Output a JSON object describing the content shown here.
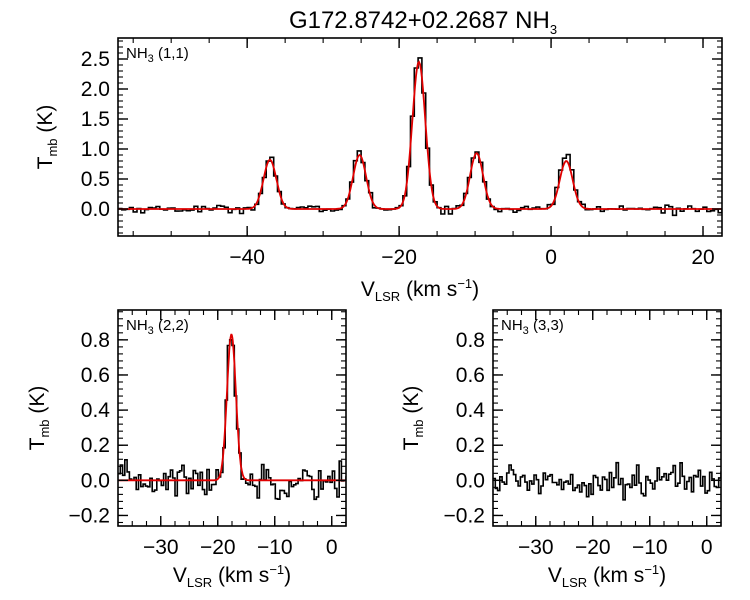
{
  "figure": {
    "title_main": "G172.8742+02.2687 NH",
    "title_sub": "3"
  },
  "axis_text": {
    "ylabel_main": "T",
    "ylabel_sub": "mb",
    "ylabel_unit": " (K)",
    "xlabel_main": "V",
    "xlabel_sub": "LSR",
    "xlabel_unit": " (km s",
    "xlabel_sup": "−1",
    "xlabel_close": ")"
  },
  "colors": {
    "observed": "#000000",
    "fit": "#e00000"
  },
  "chart_data": [
    {
      "type": "line",
      "panel": "NH3 (1,1)",
      "label_main": "NH",
      "label_sub": "3",
      "label_rest": " (1,1)",
      "xlim": [
        -57,
        22.5
      ],
      "ylim": [
        -0.45,
        2.85
      ],
      "xticks": [
        -40,
        -20,
        0,
        20
      ],
      "xtick_labels": [
        "−40",
        "−20",
        "0",
        "20"
      ],
      "yticks": [
        0.0,
        0.5,
        1.0,
        1.5,
        2.0,
        2.5
      ],
      "ytick_labels": [
        "0.0",
        "0.5",
        "1.0",
        "1.5",
        "2.0",
        "2.5"
      ],
      "series": [
        {
          "style": "observed-histogram",
          "components": [
            {
              "center": -37.0,
              "amplitude": 0.85,
              "width": 0.85
            },
            {
              "center": -25.2,
              "amplitude": 0.93,
              "width": 0.85
            },
            {
              "center": -17.4,
              "amplitude": 2.58,
              "width": 0.85
            },
            {
              "center": -9.8,
              "amplitude": 0.97,
              "width": 0.85
            },
            {
              "center": 2.0,
              "amplitude": 0.95,
              "width": 0.85
            }
          ],
          "noise_rms": 0.03,
          "channel_width": 0.5
        },
        {
          "style": "gaussian-fit",
          "components": [
            {
              "center": -37.0,
              "amplitude": 0.82,
              "width": 0.85
            },
            {
              "center": -25.2,
              "amplitude": 0.9,
              "width": 0.85
            },
            {
              "center": -17.4,
              "amplitude": 2.45,
              "width": 0.85
            },
            {
              "center": -9.8,
              "amplitude": 0.93,
              "width": 0.85
            },
            {
              "center": 2.0,
              "amplitude": 0.8,
              "width": 0.85
            }
          ]
        }
      ]
    },
    {
      "type": "line",
      "panel": "NH3 (2,2)",
      "label_main": "NH",
      "label_sub": "3",
      "label_rest": " (2,2)",
      "xlim": [
        -37.5,
        2.5
      ],
      "ylim": [
        -0.26,
        0.97
      ],
      "xticks": [
        -30,
        -20,
        -10,
        0
      ],
      "xtick_labels": [
        "−30",
        "−20",
        "−10",
        "0"
      ],
      "yticks": [
        -0.2,
        0.0,
        0.2,
        0.4,
        0.6,
        0.8
      ],
      "ytick_labels": [
        "−0.2",
        "0.0",
        "0.2",
        "0.4",
        "0.6",
        "0.8"
      ],
      "series": [
        {
          "style": "observed-histogram",
          "components": [
            {
              "center": -17.6,
              "amplitude": 0.82,
              "width": 0.8
            }
          ],
          "noise_rms": 0.05,
          "channel_width": 0.4
        },
        {
          "style": "gaussian-fit",
          "components": [
            {
              "center": -17.6,
              "amplitude": 0.83,
              "width": 0.78
            }
          ]
        }
      ]
    },
    {
      "type": "line",
      "panel": "NH3 (3,3)",
      "label_main": "NH",
      "label_sub": "3",
      "label_rest": " (3,3)",
      "xlim": [
        -37.5,
        2.5
      ],
      "ylim": [
        -0.26,
        0.97
      ],
      "xticks": [
        -30,
        -20,
        -10,
        0
      ],
      "xtick_labels": [
        "−30",
        "−20",
        "−10",
        "0"
      ],
      "yticks": [
        -0.2,
        0.0,
        0.2,
        0.4,
        0.6,
        0.8
      ],
      "ytick_labels": [
        "−0.2",
        "0.0",
        "0.2",
        "0.4",
        "0.6",
        "0.8"
      ],
      "series": [
        {
          "style": "observed-histogram",
          "components": [],
          "noise_rms": 0.045,
          "channel_width": 0.4
        }
      ]
    }
  ]
}
